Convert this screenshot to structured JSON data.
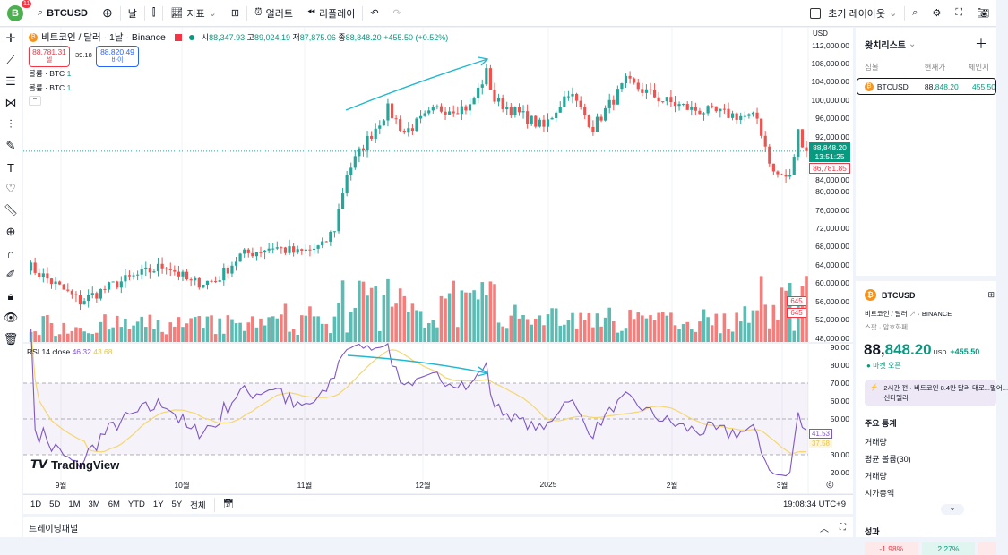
{
  "topbar": {
    "avatar": "B",
    "badge": "11",
    "symbol": "BTCUSD",
    "interval": "날",
    "indicators": "지표",
    "alert": "얼러트",
    "replay": "리플레이",
    "layout": "초기 레이아웃"
  },
  "legend": {
    "title": "비트코인 / 달러 · 1날 · Binance",
    "o_label": "시",
    "o": "88,347.93",
    "h_label": "고",
    "h": "89,024.19",
    "l_label": "저",
    "l": "87,875.06",
    "c_label": "종",
    "c": "88,848.20",
    "change": "+455.50 (+0.52%)",
    "sell_price": "88,781.31",
    "sell_label": "셀",
    "spread": "39.18",
    "buy_price": "88,820.49",
    "buy_label": "바이",
    "vol1": "볼륨 · BTC",
    "vol1_val": "1",
    "vol2": "볼륨 · BTC",
    "vol2_val": "1"
  },
  "price_axis": {
    "currency": "USD",
    "ticks": [
      "112,000.00",
      "108,000.00",
      "104,000.00",
      "100,000.00",
      "96,000.00",
      "92,000.00",
      "84,000.00",
      "80,000.00",
      "76,000.00",
      "72,000.00",
      "68,000.00",
      "64,000.00",
      "60,000.00",
      "56,000.00",
      "52,000.00",
      "48,000.00"
    ],
    "last_price": "88,848.20",
    "countdown": "13:51:25",
    "ref_price": "86,781.85",
    "vol_label1": "645",
    "vol_label2": "645"
  },
  "rsi": {
    "label": "RSI 14 close",
    "value": "46.32",
    "ma": "43.68",
    "ticks": [
      "90.00",
      "80.00",
      "70.00",
      "60.00",
      "50.00",
      "40.00",
      "30.00",
      "20.00"
    ],
    "last": "41.53",
    "last_ma": "37.58"
  },
  "time_axis": [
    "9월",
    "10월",
    "11월",
    "12월",
    "2025",
    "2월",
    "3월"
  ],
  "logo": "TradingView",
  "ranges": [
    "1D",
    "5D",
    "1M",
    "3M",
    "6M",
    "YTD",
    "1Y",
    "5Y",
    "전체"
  ],
  "clock": "19:08:34 UTC+9",
  "trading_panel": "트레이딩패널",
  "watchlist": {
    "title": "왓치리스트",
    "cols": [
      "심볼",
      "현재가",
      "체인지"
    ],
    "rows": [
      {
        "symbol": "BTCUSD",
        "price_a": "88,",
        "price_b": "848.20",
        "change": "455.50"
      }
    ]
  },
  "detail": {
    "symbol": "BTCUSD",
    "name": "비트코인 / 달러",
    "exchange": "BINANCE",
    "type": "스팟 · 암호화폐",
    "price_a": "88,",
    "price_b": "848.20",
    "currency": "USD",
    "change": "+455.50",
    "status": "마켓 오픈",
    "news": "2시간 전 · 비트코인 8.4만 달러 대로...멀어...",
    "news2": "신타멜리",
    "stats_title": "주요 통계",
    "stats": [
      "거래량",
      "평균 볼륨(30)",
      "거래량",
      "시가총액"
    ],
    "perf_title": "성과",
    "perf": [
      "-1.98%",
      "2.27%"
    ]
  },
  "colors": {
    "up": "#26a69a",
    "down": "#ef5350",
    "rsi": "#7e57c2",
    "rsi_ma": "#f5d76e",
    "accent": "#2962ff",
    "arrow": "#22b8cf"
  },
  "chart_data": {
    "type": "candlestick",
    "days": 190,
    "keypoints": [
      [
        0,
        64000
      ],
      [
        13,
        56000
      ],
      [
        22,
        60000
      ],
      [
        34,
        64000
      ],
      [
        40,
        60000
      ],
      [
        46,
        60500
      ],
      [
        52,
        66000
      ],
      [
        60,
        68000
      ],
      [
        66,
        66500
      ],
      [
        72,
        68000
      ],
      [
        75,
        72000
      ],
      [
        78,
        84000
      ],
      [
        82,
        90000
      ],
      [
        88,
        98000
      ],
      [
        92,
        93000
      ],
      [
        100,
        98000
      ],
      [
        108,
        98500
      ],
      [
        112,
        106000
      ],
      [
        114,
        100000
      ],
      [
        122,
        96000
      ],
      [
        126,
        94000
      ],
      [
        132,
        102000
      ],
      [
        138,
        94000
      ],
      [
        146,
        104000
      ],
      [
        155,
        100000
      ],
      [
        162,
        98000
      ],
      [
        170,
        97000
      ],
      [
        178,
        96000
      ],
      [
        182,
        84000
      ],
      [
        186,
        83000
      ],
      [
        188,
        93000
      ],
      [
        190,
        88848
      ]
    ]
  }
}
